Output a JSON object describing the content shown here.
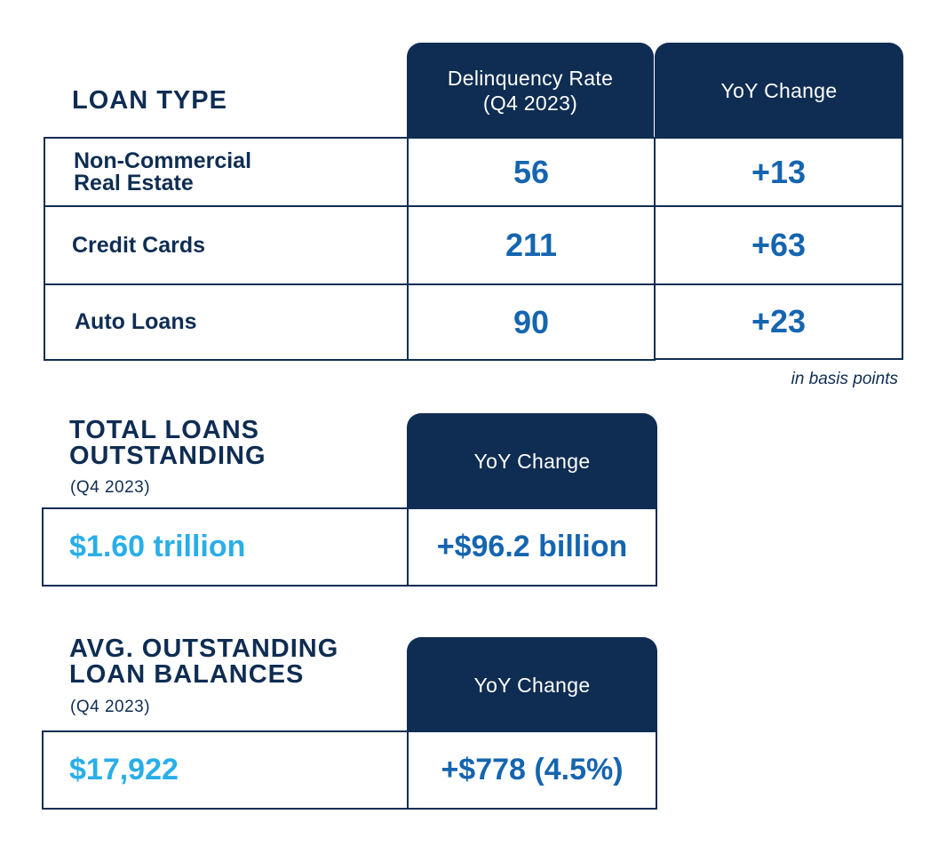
{
  "delinquency": {
    "title": "LOAN TYPE",
    "col1_line1": "Delinquency Rate",
    "col1_line2": "(Q4 2023)",
    "col2": "YoY Change",
    "rows": [
      {
        "type_line1": "Non-Commercial",
        "type_line2": "Real Estate",
        "rate": "56",
        "change": "+13"
      },
      {
        "type_line1": "Credit Cards",
        "type_line2": "",
        "rate": "211",
        "change": "+63"
      },
      {
        "type_line1": "Auto Loans",
        "type_line2": "",
        "rate": "90",
        "change": "+23"
      }
    ],
    "note": "in basis points"
  },
  "total_loans": {
    "title_line1": "TOTAL LOANS",
    "title_line2": "OUTSTANDING",
    "subtitle": "(Q4 2023)",
    "header": "YoY Change",
    "value": "$1.60 trillion",
    "change": "+$96.2 billion"
  },
  "avg_balances": {
    "title_line1": "AVG. OUTSTANDING",
    "title_line2": "LOAN BALANCES",
    "subtitle": "(Q4 2023)",
    "header": "YoY Change",
    "value": "$17,922",
    "change": "+$778 (4.5%)"
  },
  "colors": {
    "navy": "#0f2d52",
    "blue": "#1565b0",
    "light_blue": "#29aee8"
  }
}
